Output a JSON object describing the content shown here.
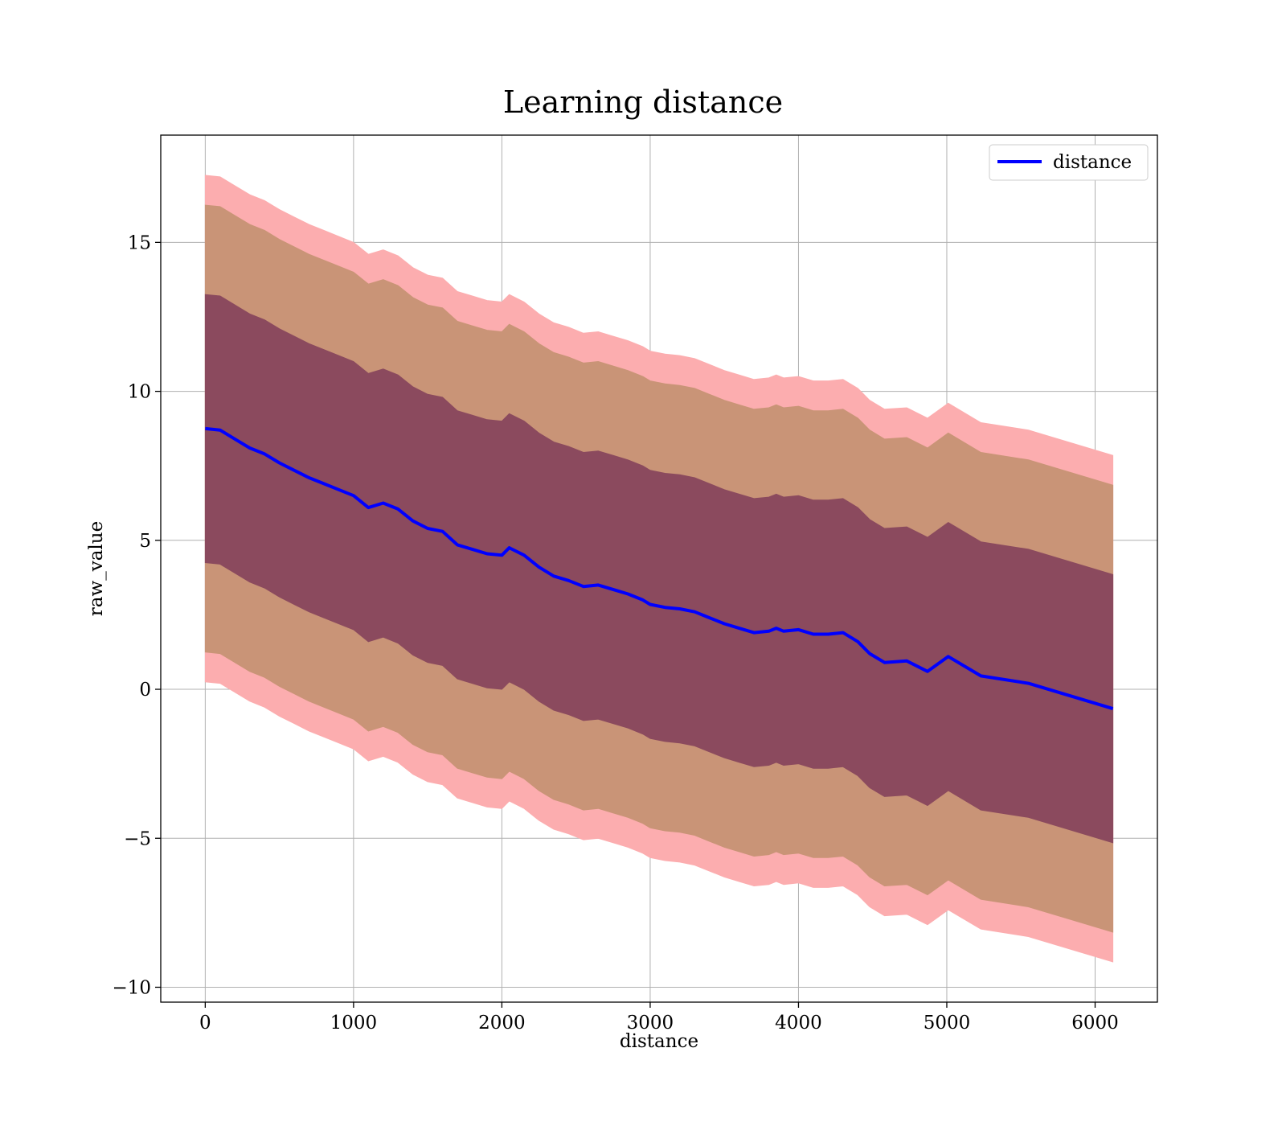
{
  "chart_data": {
    "type": "line",
    "title": "Learning distance",
    "xlabel": "distance",
    "ylabel": "raw_value",
    "xlim": [
      -300,
      6420
    ],
    "ylim": [
      -10.5,
      18.6
    ],
    "xticks": [
      0,
      1000,
      2000,
      3000,
      4000,
      5000,
      6000
    ],
    "xtick_labels": [
      "0",
      "1000",
      "2000",
      "3000",
      "4000",
      "5000",
      "6000"
    ],
    "yticks": [
      -10,
      -5,
      0,
      5,
      10,
      15
    ],
    "ytick_labels": [
      "−10",
      "−5",
      "0",
      "5",
      "10",
      "15"
    ],
    "grid": true,
    "legend": {
      "position": "top-right",
      "entries": [
        "distance"
      ]
    },
    "series": [
      {
        "name": "distance",
        "color": "#0000ff",
        "x": [
          0,
          100,
          200,
          300,
          400,
          500,
          600,
          700,
          800,
          900,
          1000,
          1100,
          1200,
          1300,
          1400,
          1500,
          1600,
          1700,
          1800,
          1900,
          2000,
          2050,
          2150,
          2250,
          2350,
          2450,
          2550,
          2650,
          2750,
          2850,
          2950,
          3000,
          3100,
          3200,
          3300,
          3400,
          3500,
          3600,
          3700,
          3800,
          3850,
          3900,
          4000,
          4100,
          4200,
          4300,
          4400,
          4480,
          4580,
          4730,
          4870,
          5010,
          5230,
          5550,
          6120
        ],
        "values": [
          8.75,
          8.7,
          8.4,
          8.1,
          7.9,
          7.6,
          7.35,
          7.1,
          6.9,
          6.7,
          6.5,
          6.1,
          6.25,
          6.05,
          5.65,
          5.4,
          5.3,
          4.85,
          4.7,
          4.55,
          4.5,
          4.75,
          4.5,
          4.1,
          3.8,
          3.65,
          3.45,
          3.5,
          3.35,
          3.2,
          3.0,
          2.85,
          2.75,
          2.7,
          2.6,
          2.4,
          2.2,
          2.05,
          1.9,
          1.95,
          2.05,
          1.95,
          2.0,
          1.85,
          1.85,
          1.9,
          1.6,
          1.2,
          0.9,
          0.95,
          0.6,
          1.1,
          0.45,
          0.2,
          -0.65
        ]
      }
    ],
    "bands": [
      {
        "label": "±4.5",
        "color": "#8b4a5e",
        "halfwidth": 4.5
      },
      {
        "label": "±7.5",
        "color": "#c99477",
        "halfwidth": 7.5
      },
      {
        "label": "±8.5",
        "color": "#fcadaf",
        "halfwidth": 8.5
      }
    ]
  }
}
